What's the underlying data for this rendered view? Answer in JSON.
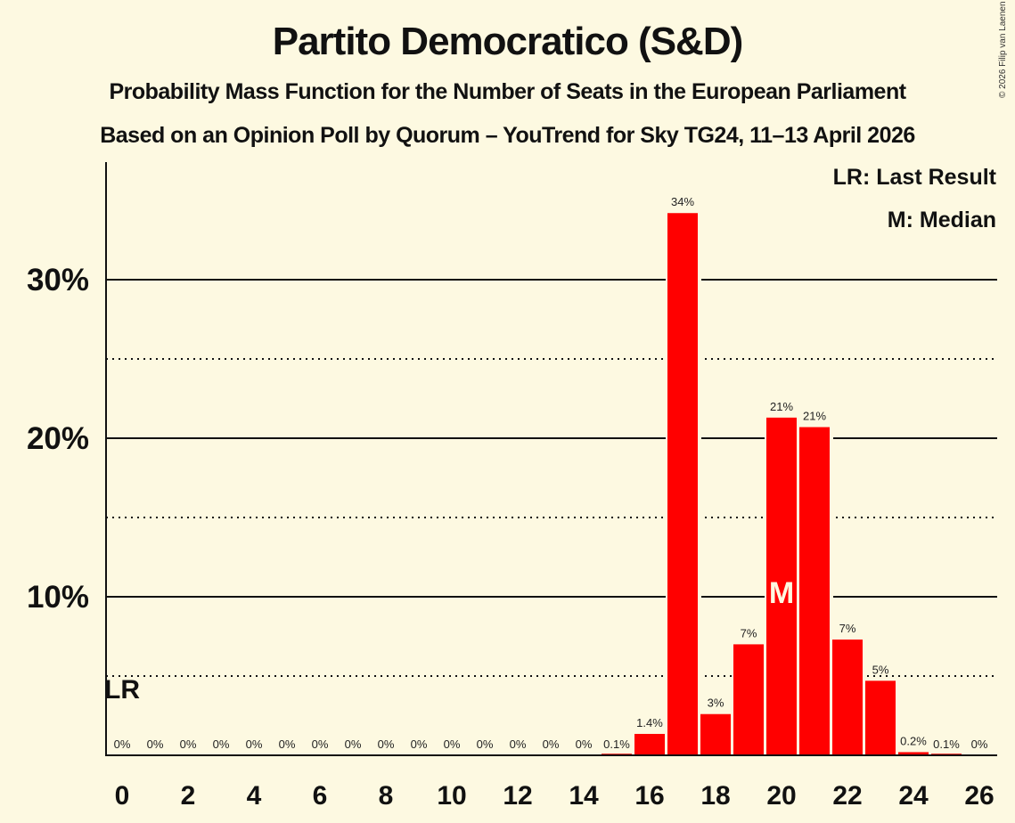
{
  "header": {
    "title": "Partito Democratico (S&D)",
    "subtitle": "Probability Mass Function for the Number of Seats in the European Parliament",
    "source": "Based on an Opinion Poll by Quorum – YouTrend for Sky TG24, 11–13 April 2026",
    "copyright": "© 2026 Filip van Laenen"
  },
  "legend": {
    "last_result": "LR: Last Result",
    "median": "M: Median"
  },
  "colors": {
    "bar": "#ff0000",
    "background": "#fdf9e1",
    "text": "#111111"
  },
  "chart_data": {
    "type": "bar",
    "title": "Partito Democratico (S&D)",
    "subtitle": "Probability Mass Function for the Number of Seats in the European Parliament",
    "xlabel": "",
    "ylabel": "",
    "ylim": [
      0,
      37
    ],
    "y_ticks": [
      "10%",
      "20%",
      "30%"
    ],
    "x_ticks": [
      0,
      2,
      4,
      6,
      8,
      10,
      12,
      14,
      16,
      18,
      20,
      22,
      24,
      26
    ],
    "grid": {
      "solid": [
        10,
        20,
        30
      ],
      "dotted": [
        5,
        15,
        25
      ]
    },
    "categories": [
      0,
      1,
      2,
      3,
      4,
      5,
      6,
      7,
      8,
      9,
      10,
      11,
      12,
      13,
      14,
      15,
      16,
      17,
      18,
      19,
      20,
      21,
      22,
      23,
      24,
      25,
      26
    ],
    "values": [
      0,
      0,
      0,
      0,
      0,
      0,
      0,
      0,
      0,
      0,
      0,
      0,
      0,
      0,
      0,
      0.1,
      1.35,
      34.2,
      2.6,
      7.0,
      21.3,
      20.7,
      7.3,
      4.7,
      0.2,
      0.1,
      0
    ],
    "labels": [
      "0%",
      "0%",
      "0%",
      "0%",
      "0%",
      "0%",
      "0%",
      "0%",
      "0%",
      "0%",
      "0%",
      "0%",
      "0%",
      "0%",
      "0%",
      "0.1%",
      "1.4%",
      "34%",
      "3%",
      "7%",
      "21%",
      "21%",
      "7%",
      "5%",
      "0.2%",
      "0.1%",
      "0%"
    ],
    "annotations": {
      "last_result_seat": 0,
      "last_result_label": "LR",
      "median_seat": 20,
      "median_label": "M"
    }
  }
}
